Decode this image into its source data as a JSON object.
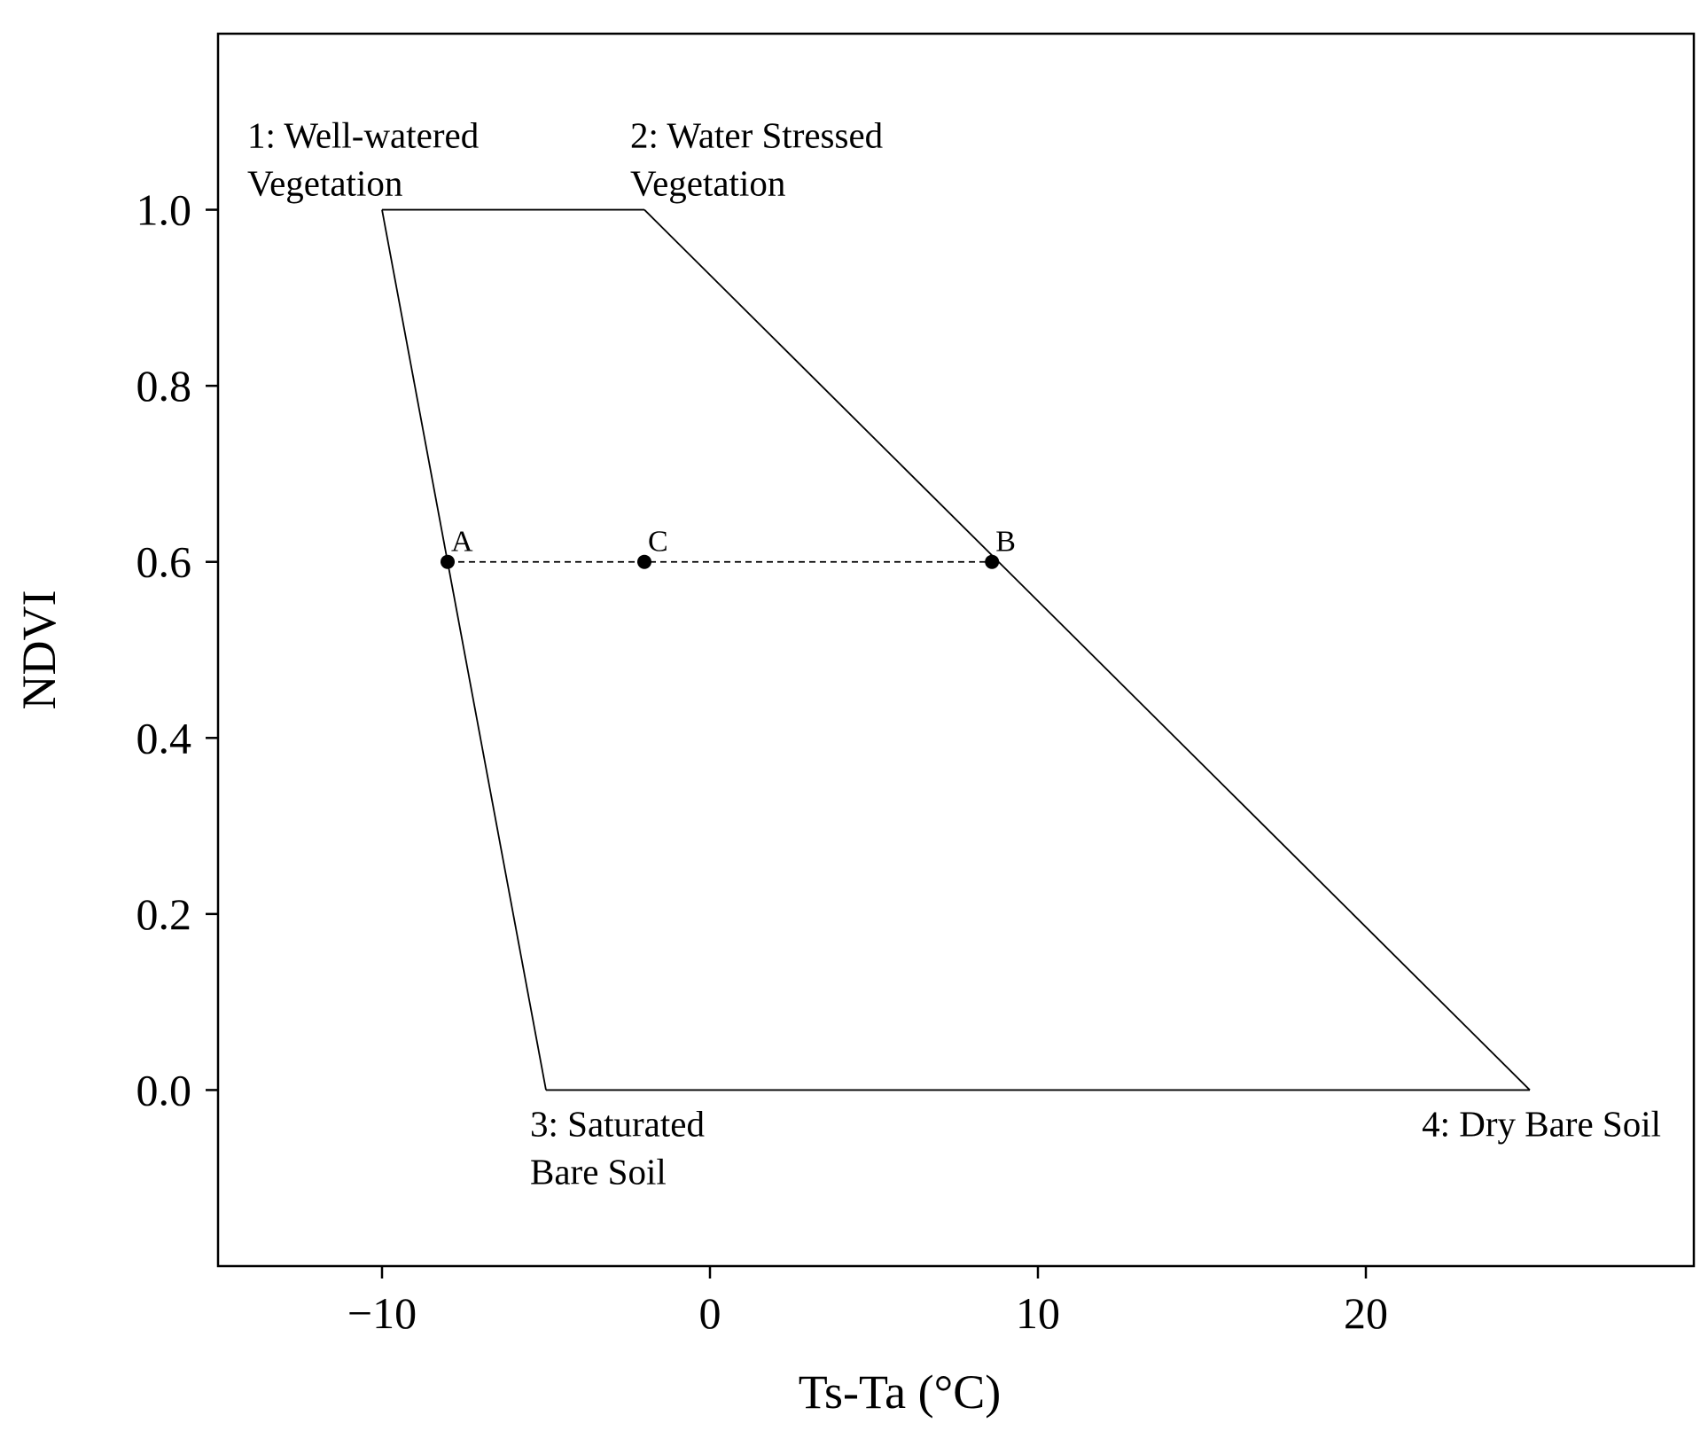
{
  "chart_data": {
    "type": "scatter",
    "title": "",
    "xlabel": "Ts-Ta (°C)",
    "ylabel": "NDVI",
    "xlim": [
      -15,
      30
    ],
    "ylim": [
      -0.2,
      1.2
    ],
    "x_ticks": [
      {
        "value": -10,
        "label": "−10"
      },
      {
        "value": 0,
        "label": "0"
      },
      {
        "value": 10,
        "label": "10"
      },
      {
        "value": 20,
        "label": "20"
      }
    ],
    "y_ticks": [
      {
        "value": 0.0,
        "label": "0.0"
      },
      {
        "value": 0.2,
        "label": "0.2"
      },
      {
        "value": 0.4,
        "label": "0.4"
      },
      {
        "value": 0.6,
        "label": "0.6"
      },
      {
        "value": 0.8,
        "label": "0.8"
      },
      {
        "value": 1.0,
        "label": "1.0"
      }
    ],
    "grid": false,
    "trapezoid": [
      {
        "x": -10,
        "y": 1.0,
        "label_lines": [
          "1: Well-watered",
          "Vegetation"
        ],
        "label_anchor": "above"
      },
      {
        "x": -2,
        "y": 1.0,
        "label_lines": [
          "2: Water Stressed",
          "Vegetation"
        ],
        "label_anchor": "above"
      },
      {
        "x": 25,
        "y": 0.0,
        "label_lines": [
          "4: Dry Bare Soil"
        ],
        "label_anchor": "below"
      },
      {
        "x": -5,
        "y": 0.0,
        "label_lines": [
          "3: Saturated",
          "Bare Soil"
        ],
        "label_anchor": "below"
      }
    ],
    "points": [
      {
        "name": "A",
        "x": -8.0,
        "y": 0.6
      },
      {
        "name": "C",
        "x": -2.0,
        "y": 0.6
      },
      {
        "name": "B",
        "x": 8.6,
        "y": 0.6
      }
    ],
    "dashed_line": {
      "from": "A",
      "to": "B",
      "y": 0.6
    }
  }
}
